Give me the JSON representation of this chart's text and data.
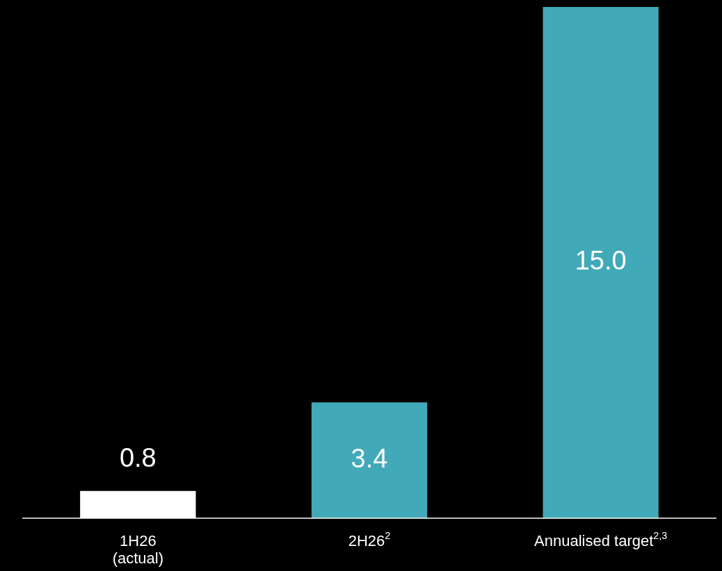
{
  "chart_data": {
    "type": "bar",
    "categories": [
      "1H26\n(actual)",
      "2H26$^{2}$",
      "Annualised target$^{2,3}$"
    ],
    "values": [
      0.8,
      3.4,
      15.0
    ],
    "colors": [
      "#ffffff",
      "#41a9b8",
      "#41a9b8"
    ],
    "value_labels": [
      "0.8",
      "3.4",
      "15.0"
    ]
  }
}
